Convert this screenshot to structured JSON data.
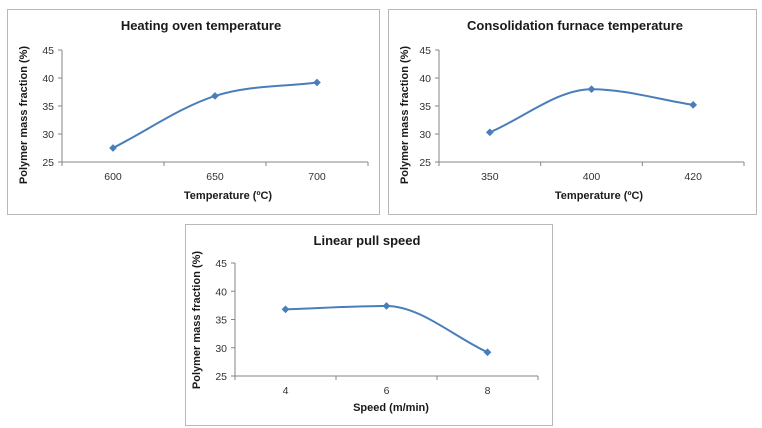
{
  "chart_data": [
    {
      "type": "line",
      "title": "Heating oven temperature",
      "xlabel": "Temperature (ºC)",
      "ylabel": "Polymer mass fraction (%)",
      "categories": [
        "600",
        "650",
        "700"
      ],
      "values": [
        27.5,
        36.8,
        39.2
      ],
      "ylim": [
        25,
        45
      ],
      "yticks": [
        "25",
        "30",
        "35",
        "40",
        "45"
      ],
      "grid": false,
      "legend": "none",
      "color": "#4a7ebb"
    },
    {
      "type": "line",
      "title": "Consolidation furnace temperature",
      "xlabel": "Temperature (ºC)",
      "ylabel": "Polymer mass fraction (%)",
      "categories": [
        "350",
        "400",
        "420"
      ],
      "values": [
        30.3,
        38.0,
        35.2
      ],
      "ylim": [
        25,
        45
      ],
      "yticks": [
        "25",
        "30",
        "35",
        "40",
        "45"
      ],
      "grid": false,
      "legend": "none",
      "color": "#4a7ebb"
    },
    {
      "type": "line",
      "title": "Linear pull speed",
      "xlabel": "Speed (m/min)",
      "ylabel": "Polymer mass fraction (%)",
      "categories": [
        "4",
        "6",
        "8"
      ],
      "values": [
        36.8,
        37.4,
        29.2
      ],
      "ylim": [
        25,
        45
      ],
      "yticks": [
        "25",
        "30",
        "35",
        "40",
        "45"
      ],
      "grid": false,
      "legend": "none",
      "color": "#4a7ebb"
    }
  ]
}
